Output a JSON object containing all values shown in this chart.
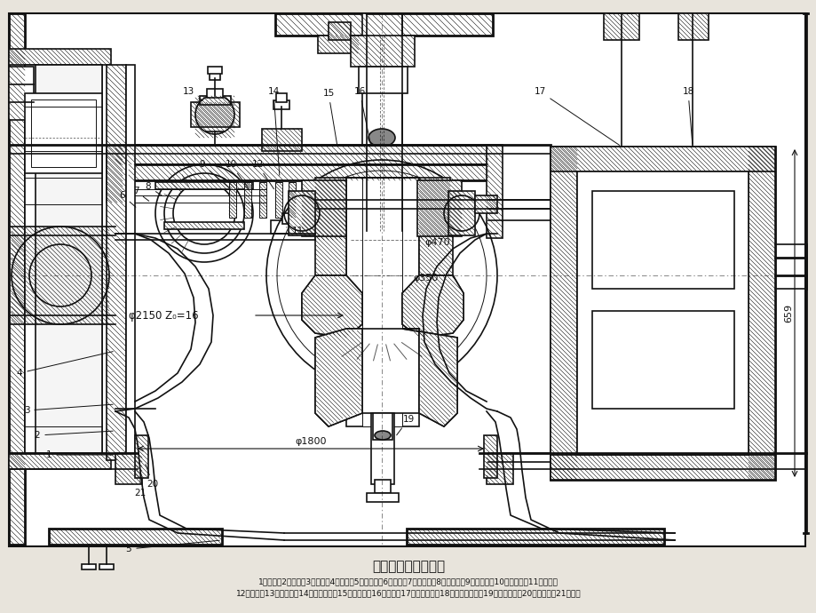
{
  "title": "混流式水轮机结构图",
  "caption_line1": "1－蜗壳；2－座环；3－导叶；4－转轮；5－尾水管；6－顶盖；7－上轴套；8－连接板；9－分半键；10－剪断销；11－拐臂；",
  "caption_line2": "12－连杆；13－控制环；14－密封装置；15－导轴承；16－主轴；17－油冷却器；18－顶盖排水管；19－补气装置；20－基础环；21－底环",
  "bg_color": "#e8e4dc",
  "line_color": "#111111",
  "dim_d2150": "φ2150 Z₀=16",
  "dim_d470": "φ470",
  "dim_d350": "φ350",
  "dim_d1800": "φ1800",
  "dim_d659": "659",
  "fig_width": 9.2,
  "fig_height": 6.9,
  "dpi": 100
}
